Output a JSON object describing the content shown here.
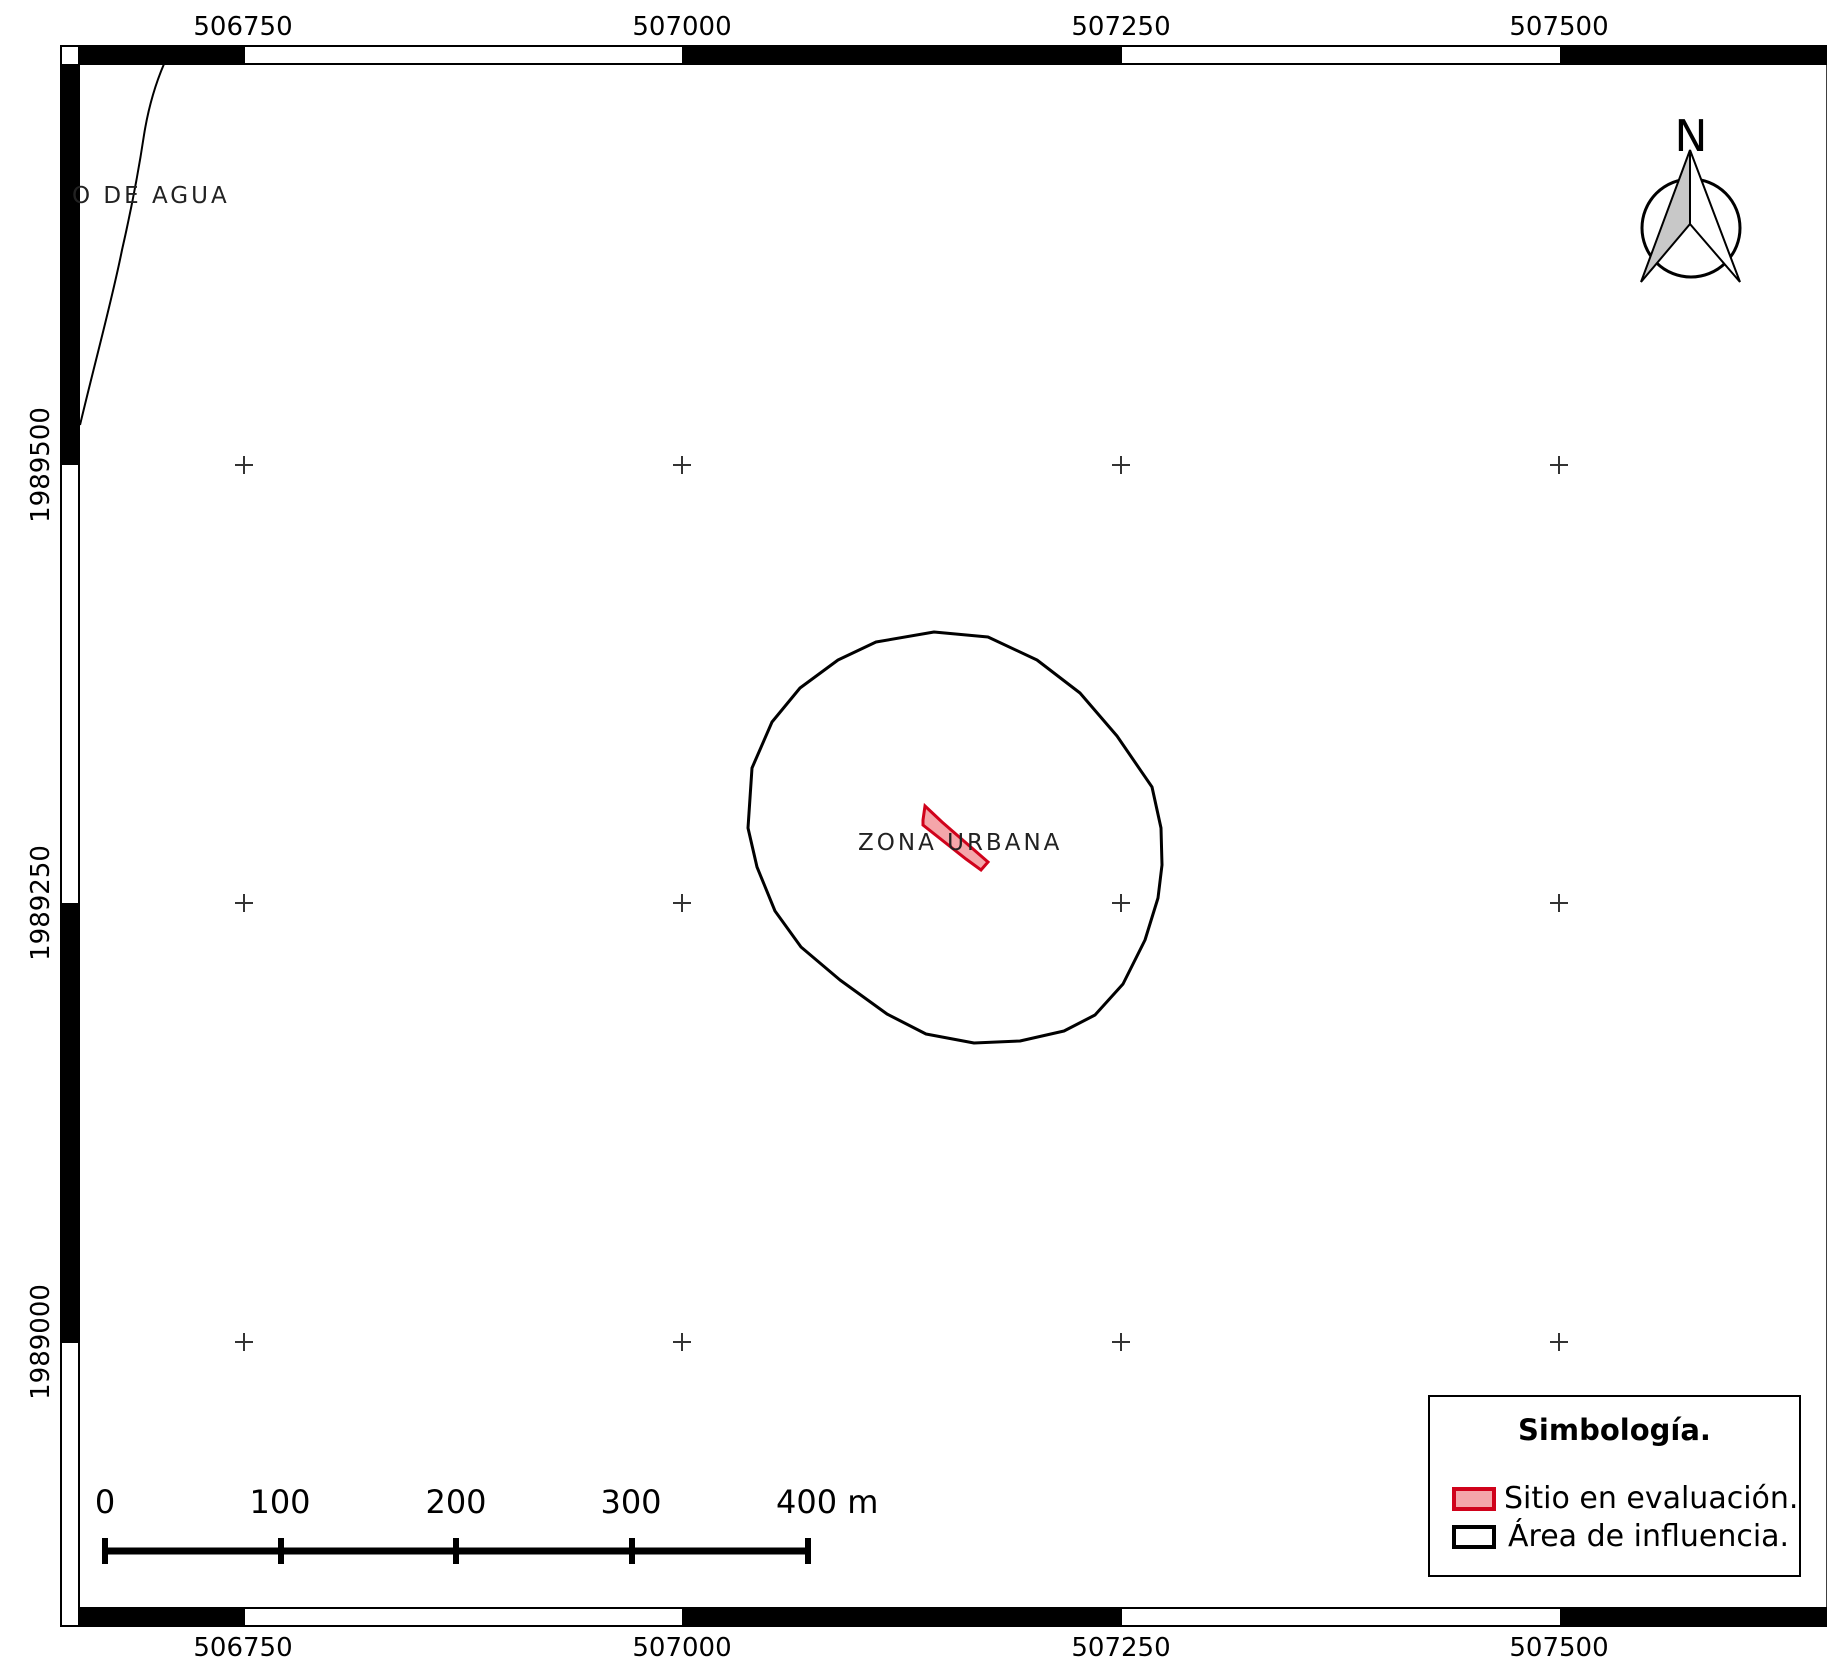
{
  "map": {
    "x_ticks": [
      "506750",
      "507000",
      "507250",
      "507500"
    ],
    "y_ticks": [
      "1989500",
      "1989250",
      "1989000"
    ],
    "labels": {
      "water": "O  DE AGUA",
      "urban": "ZONA URBANA"
    }
  },
  "scale_bar": {
    "labels": [
      "0",
      "100",
      "200",
      "300",
      "400 m"
    ]
  },
  "north_arrow": {
    "letter": "N",
    "icon": "north-arrow-icon"
  },
  "legend": {
    "title": "Simbología.",
    "items": [
      {
        "label": "Sitio en evaluación.",
        "fill": "#f4a6aa",
        "stroke": "#d0021b"
      },
      {
        "label": "Área de influencia.",
        "fill": "#ffffff",
        "stroke": "#000000"
      }
    ]
  },
  "colors": {
    "site_fill": "#f4a6aa",
    "site_stroke": "#d0021b",
    "frame": "#000000"
  }
}
